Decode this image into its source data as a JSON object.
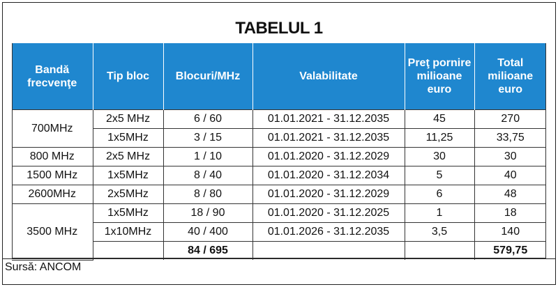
{
  "title": "TABELUL 1",
  "table": {
    "header": [
      "Bandă frecvenţe",
      "Tip bloc",
      "Blocuri/MHz",
      "Valabilitate",
      "Preţ pornire milioane euro",
      "Total milioane euro"
    ],
    "groups": [
      {
        "band": "700MHz",
        "rows": [
          [
            "2x5 MHz",
            "6 / 60",
            "01.01.2021 - 31.12.2035",
            "45",
            "270"
          ],
          [
            "1x5MHz",
            "3 / 15",
            "01.01.2021 - 31.12.2035",
            "11,25",
            "33,75"
          ]
        ]
      },
      {
        "band": "800 MHz",
        "rows": [
          [
            "2x5 MHz",
            "1 / 10",
            "01.01.2020 - 31.12.2029",
            "30",
            "30"
          ]
        ]
      },
      {
        "band": "1500 MHz",
        "rows": [
          [
            "1x5MHz",
            "8 / 40",
            "01.01.2020 - 31.12.2034",
            "5",
            "40"
          ]
        ]
      },
      {
        "band": "2600MHz",
        "rows": [
          [
            "2x5MHz",
            "8 / 80",
            "01.01.2020 - 31.12.2029",
            "6",
            "48"
          ]
        ]
      },
      {
        "band": "3500 MHz",
        "rows": [
          [
            "1x5MHz",
            "18 / 90",
            "01.01.2020 - 31.12.2025",
            "1",
            "18"
          ],
          [
            "1x10MHz",
            "40 / 400",
            "01.01.2026 - 31.12.2035",
            "3,5",
            "140"
          ]
        ]
      }
    ],
    "total": {
      "blocks": "84 / 695",
      "total": "579,75"
    }
  },
  "source": "Sursă: ANCOM"
}
